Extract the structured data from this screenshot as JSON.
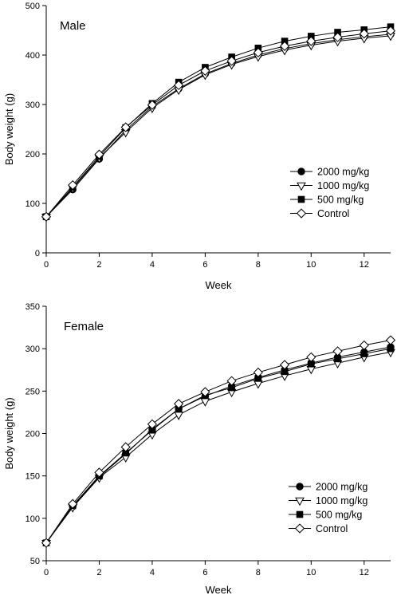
{
  "chart_data": [
    {
      "type": "line",
      "label": "Male",
      "xlabel": "Week",
      "ylabel": "Body weight (g)",
      "xlim": [
        0,
        13
      ],
      "ylim": [
        0,
        500
      ],
      "xticks": [
        0,
        2,
        4,
        6,
        8,
        10,
        12
      ],
      "yticks": [
        0,
        100,
        200,
        300,
        400,
        500
      ],
      "legend": "right",
      "grid": false,
      "x": [
        0,
        1,
        2,
        3,
        4,
        5,
        6,
        7,
        8,
        9,
        10,
        11,
        12,
        13
      ],
      "series": [
        {
          "name": "2000 mg/kg",
          "marker": "filled-circle",
          "values": [
            73,
            128,
            190,
            248,
            296,
            332,
            362,
            383,
            400,
            413,
            423,
            431,
            437,
            442
          ]
        },
        {
          "name": "1000 mg/kg",
          "marker": "open-triangle-down",
          "values": [
            73,
            131,
            192,
            244,
            293,
            330,
            360,
            381,
            397,
            410,
            420,
            428,
            434,
            439
          ]
        },
        {
          "name": "500 mg/kg",
          "marker": "filled-square",
          "values": [
            73,
            133,
            195,
            253,
            302,
            345,
            375,
            396,
            414,
            428,
            438,
            446,
            451,
            457
          ]
        },
        {
          "name": "Control",
          "marker": "open-diamond",
          "values": [
            73,
            137,
            199,
            254,
            299,
            339,
            368,
            388,
            405,
            418,
            428,
            436,
            443,
            449
          ]
        }
      ]
    },
    {
      "type": "line",
      "label": "Female",
      "xlabel": "Week",
      "ylabel": "Body weight (g)",
      "xlim": [
        0,
        13
      ],
      "ylim": [
        50,
        350
      ],
      "xticks": [
        0,
        2,
        4,
        6,
        8,
        10,
        12
      ],
      "yticks": [
        50,
        100,
        150,
        200,
        250,
        300,
        350
      ],
      "legend": "bottom-right",
      "grid": false,
      "x": [
        0,
        1,
        2,
        3,
        4,
        5,
        6,
        7,
        8,
        9,
        10,
        11,
        12,
        13
      ],
      "series": [
        {
          "name": "2000 mg/kg",
          "marker": "filled-circle",
          "values": [
            71,
            114,
            149,
            176,
            205,
            229,
            244,
            256,
            266,
            275,
            283,
            290,
            296,
            302
          ]
        },
        {
          "name": "1000 mg/kg",
          "marker": "open-triangle-down",
          "values": [
            71,
            113,
            148,
            172,
            199,
            222,
            238,
            249,
            259,
            268,
            276,
            283,
            290,
            296
          ]
        },
        {
          "name": "500 mg/kg",
          "marker": "filled-square",
          "values": [
            71,
            115,
            150,
            177,
            204,
            229,
            245,
            254,
            265,
            273,
            282,
            288,
            294,
            300
          ]
        },
        {
          "name": "Control",
          "marker": "open-diamond",
          "values": [
            71,
            117,
            154,
            184,
            211,
            235,
            249,
            262,
            272,
            281,
            290,
            297,
            304,
            310
          ]
        }
      ]
    }
  ]
}
